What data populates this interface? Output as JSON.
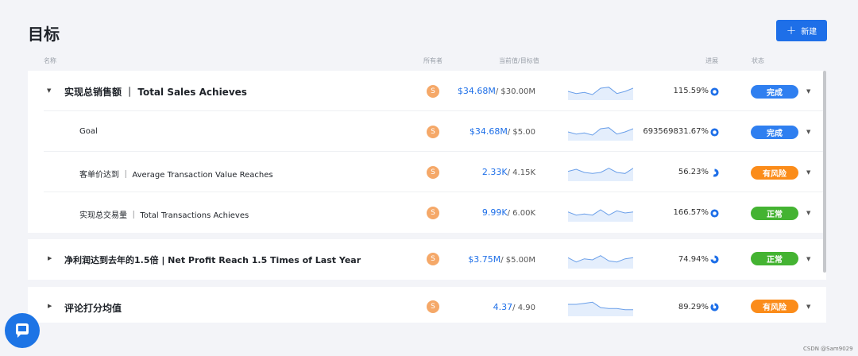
{
  "header": {
    "title": "目标",
    "new_button_label": "新建",
    "new_button_icon": "plus-icon"
  },
  "columns": {
    "name": "名称",
    "owner": "所有者",
    "current_target": "当前值/目标值",
    "progress": "进展",
    "status": "状态"
  },
  "status_colors": {
    "完成": "#2f7ff0",
    "有风险": "#fb8c1a",
    "正常": "#44b332"
  },
  "pie_color": "#1e6fe8",
  "rows": [
    {
      "name": "实现总销售额 ｜ Total Sales Achieves",
      "level": 0,
      "expanded": true,
      "owner": "S",
      "current": "$34.68M",
      "target": "/ $30.00M",
      "progress_text": "115.59%",
      "progress_value": 1.1559,
      "status": "完成",
      "trend": [
        6,
        4,
        5,
        3,
        9,
        10,
        4,
        6,
        9
      ]
    },
    {
      "name": "Goal",
      "level": 1,
      "owner": "S",
      "current": "$34.68M",
      "target": "/ $5.00",
      "progress_text": "693569831.67%",
      "progress_value": 1.0,
      "status": "完成",
      "trend": [
        6,
        4,
        5,
        3,
        9,
        10,
        4,
        6,
        9
      ]
    },
    {
      "name": "客单价达到 ｜ Average Transaction Value Reaches",
      "level": 1,
      "owner": "S",
      "current": "2.33K",
      "target": "/ 4.15K",
      "progress_text": "56.23%",
      "progress_value": 0.5623,
      "status": "有风险",
      "trend": [
        7,
        9,
        6,
        5,
        6,
        10,
        6,
        5,
        10
      ]
    },
    {
      "name": "实现总交易量 ｜ Total Transactions Achieves",
      "level": 1,
      "owner": "S",
      "current": "9.99K",
      "target": "/ 6.00K",
      "progress_text": "166.57%",
      "progress_value": 1.0,
      "status": "正常",
      "trend": [
        7,
        4,
        5,
        4,
        9,
        4,
        8,
        6,
        7
      ]
    },
    {
      "name": "净利润达到去年的1.5倍 | Net Profit Reach 1.5 Times of Last Year",
      "level": 0,
      "expanded": false,
      "owner": "S",
      "current": "$3.75M",
      "target": "/ $5.00M",
      "progress_text": "74.94%",
      "progress_value": 0.7494,
      "status": "正常",
      "trend": [
        8,
        4,
        7,
        6,
        10,
        5,
        4,
        7,
        8
      ]
    },
    {
      "name": "评论打分均值",
      "level": 0,
      "expanded": false,
      "owner": "S",
      "current": "4.37",
      "target": "/ 4.90",
      "progress_text": "89.29%",
      "progress_value": 0.8929,
      "status": "有风险",
      "trend": [
        9,
        9,
        10,
        11,
        6,
        5,
        5,
        4,
        4
      ]
    }
  ],
  "watermark": "CSDN @Sam9029",
  "chat_button_icon": "chat-bubble-icon"
}
